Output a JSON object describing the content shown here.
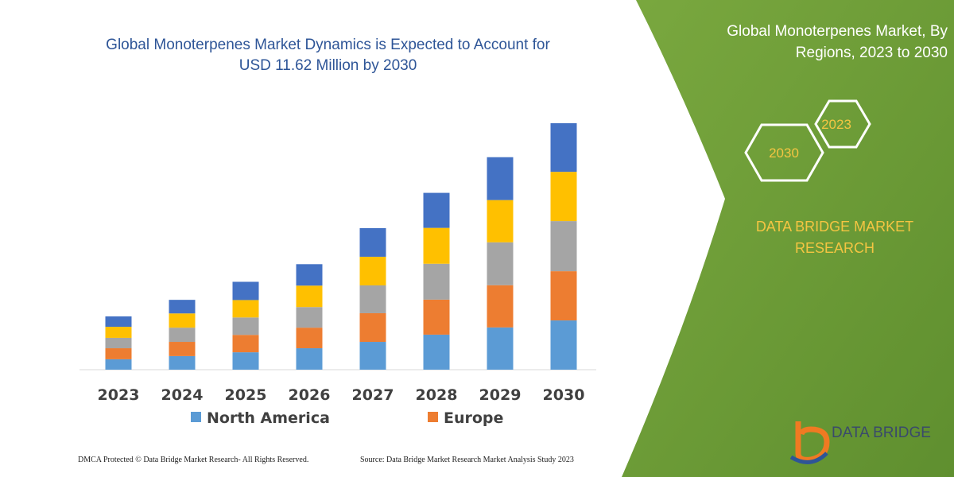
{
  "chart_data": {
    "type": "bar",
    "stacked": true,
    "title": "Global Monoterpenes Market Dynamics is Expected to Account for USD 11.62 Million by 2030",
    "categories": [
      "2023",
      "2024",
      "2025",
      "2026",
      "2027",
      "2028",
      "2029",
      "2030"
    ],
    "series": [
      {
        "name": "North America",
        "color": "#5b9bd5",
        "values": [
          0.49,
          0.64,
          0.82,
          1.01,
          1.31,
          1.65,
          1.99,
          2.32
        ]
      },
      {
        "name": "Europe",
        "color": "#ed7d31",
        "values": [
          0.52,
          0.67,
          0.82,
          0.97,
          1.35,
          1.65,
          1.99,
          2.32
        ]
      },
      {
        "color": "#a5a5a5",
        "values": [
          0.49,
          0.67,
          0.82,
          0.97,
          1.31,
          1.69,
          2.02,
          2.36
        ]
      },
      {
        "color": "#ffc000",
        "values": [
          0.52,
          0.67,
          0.82,
          1.01,
          1.35,
          1.69,
          1.99,
          2.32
        ]
      },
      {
        "color": "#4472c4",
        "values": [
          0.49,
          0.64,
          0.86,
          1.01,
          1.35,
          1.65,
          2.02,
          2.29
        ]
      }
    ],
    "legend": "bottom"
  },
  "side_panel": {
    "title": "Global Monoterpenes Market, By Regions, 2023 to 2030",
    "hex_labels": [
      "2023",
      "2030"
    ],
    "brand": "DATA BRIDGE MARKET RESEARCH"
  },
  "footer": {
    "left": "DMCA Protected © Data Bridge Market Research-  All Rights Reserved.",
    "right": "Source: Data Bridge Market Research  Market Analysis Study 2023"
  },
  "logo": "DATA BRIDGE"
}
